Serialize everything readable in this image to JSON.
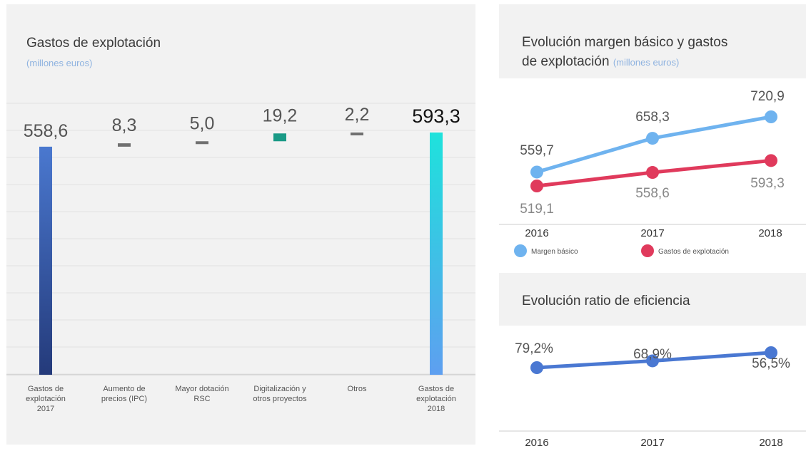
{
  "left_chart": {
    "title": "Gastos de explotación",
    "subtitle": "(millones euros)"
  },
  "line_chart": {
    "title_line1": "Evolución margen básico y gastos",
    "title_line2": "de explotación",
    "subtitle": "(millones euros)"
  },
  "ratio_chart": {
    "title": "Evolución ratio de eficiencia"
  },
  "chart_data": [
    {
      "type": "bar",
      "subtype": "waterfall",
      "title": "Gastos de explotación",
      "subtitle": "(millones euros)",
      "categories": [
        [
          "Gastos de",
          "explotación",
          "2017"
        ],
        [
          "Aumento de",
          "precios (IPC)"
        ],
        [
          "Mayor dotación",
          "RSC"
        ],
        [
          "Digitalización y",
          "otros proyectos"
        ],
        [
          "Otros"
        ],
        [
          "Gastos de",
          "explotación",
          "2018"
        ]
      ],
      "values": [
        558.6,
        8.3,
        5.0,
        19.2,
        2.2,
        593.3
      ],
      "labels": [
        "558,6",
        "8,3",
        "5,0",
        "19,2",
        "2,2",
        "593,3"
      ],
      "kinds": [
        "total",
        "delta",
        "delta",
        "delta",
        "delta",
        "total"
      ],
      "colors": {
        "total_2017_top": "#4a78cf",
        "total_2017_bottom": "#243a7a",
        "total_2018_top": "#1ee2dc",
        "total_2018_bottom": "#5e9ff0",
        "delta_small": "#707070",
        "delta_large": "#1a9a86"
      },
      "grid": true
    },
    {
      "type": "line",
      "title": "Evolución margen básico y gastos de explotación",
      "subtitle": "(millones euros)",
      "x": [
        "2016",
        "2017",
        "2018"
      ],
      "series": [
        {
          "name": "Margen básico",
          "values": [
            559.7,
            658.3,
            720.9
          ],
          "labels": [
            "559,7",
            "658,3",
            "720,9"
          ],
          "color": "#6fb3ef"
        },
        {
          "name": "Gastos de explotación",
          "values": [
            519.1,
            558.6,
            593.3
          ],
          "labels": [
            "519,1",
            "558,6",
            "593,3"
          ],
          "color": "#e03a5c"
        }
      ],
      "legend": "bottom"
    },
    {
      "type": "line",
      "title": "Evolución ratio de eficiencia",
      "x": [
        "2016",
        "2017",
        "2018"
      ],
      "series": [
        {
          "values": [
            79.2,
            68.9,
            56.5
          ],
          "labels": [
            "79,2%",
            "68,9%",
            "56,5%"
          ],
          "color": "#4a78d2"
        }
      ]
    }
  ]
}
